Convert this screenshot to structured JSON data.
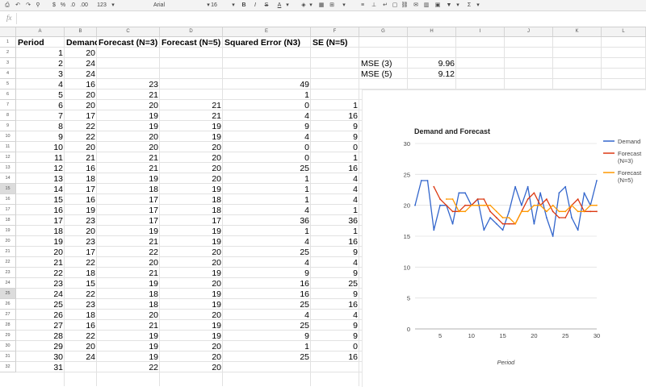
{
  "toolbar": {
    "font": "Arial",
    "font_size": "16",
    "currency": "$",
    "percent": "%",
    "decimals_less": ".0",
    "decimals_more": ".00",
    "number_format": "123",
    "bold": "B",
    "italic": "I",
    "strike": "S",
    "text_color": "A",
    "sum": "Σ"
  },
  "formula_bar": {
    "fx": "fx",
    "value": ""
  },
  "columns": [
    "A",
    "B",
    "C",
    "D",
    "E",
    "F",
    "G",
    "H",
    "I",
    "J",
    "K",
    "L"
  ],
  "rows": [
    "1",
    "2",
    "3",
    "4",
    "5",
    "6",
    "7",
    "8",
    "9",
    "10",
    "11",
    "12",
    "13",
    "14",
    "15",
    "16",
    "17",
    "18",
    "19",
    "20",
    "21",
    "22",
    "23",
    "24",
    "25",
    "26",
    "27",
    "28",
    "29",
    "30",
    "31",
    "32"
  ],
  "sheet": {
    "headers": [
      "Period",
      "Demand",
      "Forecast (N=3)",
      "Forecast (N=5)",
      "Squared Error (N3)",
      "SE (N=5)"
    ],
    "data": [
      [
        "1",
        "20",
        "",
        "",
        "",
        ""
      ],
      [
        "2",
        "24",
        "",
        "",
        "",
        ""
      ],
      [
        "3",
        "24",
        "",
        "",
        "",
        ""
      ],
      [
        "4",
        "16",
        "23",
        "",
        "49",
        ""
      ],
      [
        "5",
        "20",
        "21",
        "",
        "1",
        ""
      ],
      [
        "6",
        "20",
        "20",
        "21",
        "0",
        "1"
      ],
      [
        "7",
        "17",
        "19",
        "21",
        "4",
        "16"
      ],
      [
        "8",
        "22",
        "19",
        "19",
        "9",
        "9"
      ],
      [
        "9",
        "22",
        "20",
        "19",
        "4",
        "9"
      ],
      [
        "10",
        "20",
        "20",
        "20",
        "0",
        "0"
      ],
      [
        "11",
        "21",
        "21",
        "20",
        "0",
        "1"
      ],
      [
        "12",
        "16",
        "21",
        "20",
        "25",
        "16"
      ],
      [
        "13",
        "18",
        "19",
        "20",
        "1",
        "4"
      ],
      [
        "14",
        "17",
        "18",
        "19",
        "1",
        "4"
      ],
      [
        "15",
        "16",
        "17",
        "18",
        "1",
        "4"
      ],
      [
        "16",
        "19",
        "17",
        "18",
        "4",
        "1"
      ],
      [
        "17",
        "23",
        "17",
        "17",
        "36",
        "36"
      ],
      [
        "18",
        "20",
        "19",
        "19",
        "1",
        "1"
      ],
      [
        "19",
        "23",
        "21",
        "19",
        "4",
        "16"
      ],
      [
        "20",
        "17",
        "22",
        "20",
        "25",
        "9"
      ],
      [
        "21",
        "22",
        "20",
        "20",
        "4",
        "4"
      ],
      [
        "22",
        "18",
        "21",
        "19",
        "9",
        "9"
      ],
      [
        "23",
        "15",
        "19",
        "20",
        "16",
        "25"
      ],
      [
        "24",
        "22",
        "18",
        "19",
        "16",
        "9"
      ],
      [
        "25",
        "23",
        "18",
        "19",
        "25",
        "16"
      ],
      [
        "26",
        "18",
        "20",
        "20",
        "4",
        "4"
      ],
      [
        "27",
        "16",
        "21",
        "19",
        "25",
        "9"
      ],
      [
        "28",
        "22",
        "19",
        "19",
        "9",
        "9"
      ],
      [
        "29",
        "20",
        "19",
        "20",
        "1",
        "0"
      ],
      [
        "30",
        "24",
        "19",
        "20",
        "25",
        "16"
      ],
      [
        "31",
        "",
        "22",
        "20",
        "",
        ""
      ]
    ],
    "mse": [
      {
        "label": "MSE (3)",
        "value": "9.96"
      },
      {
        "label": "MSE (5)",
        "value": "9.12"
      }
    ]
  },
  "chart_data": {
    "type": "line",
    "title": "Demand and Forecast",
    "xlabel": "Period",
    "ylabel": "",
    "ylim": [
      0,
      30
    ],
    "xlim": [
      1,
      30
    ],
    "x_ticks": [
      5,
      10,
      15,
      20,
      25,
      30
    ],
    "y_ticks": [
      0,
      5,
      10,
      15,
      20,
      25,
      30
    ],
    "legend_position": "right",
    "series": [
      {
        "name": "Demand",
        "legend_lines": [
          "Demand"
        ],
        "color": "#3366cc",
        "x": [
          1,
          2,
          3,
          4,
          5,
          6,
          7,
          8,
          9,
          10,
          11,
          12,
          13,
          14,
          15,
          16,
          17,
          18,
          19,
          20,
          21,
          22,
          23,
          24,
          25,
          26,
          27,
          28,
          29,
          30
        ],
        "values": [
          20,
          24,
          24,
          16,
          20,
          20,
          17,
          22,
          22,
          20,
          21,
          16,
          18,
          17,
          16,
          19,
          23,
          20,
          23,
          17,
          22,
          18,
          15,
          22,
          23,
          18,
          16,
          22,
          20,
          24
        ]
      },
      {
        "name": "Forecast (N=3)",
        "legend_lines": [
          "Forecast",
          "(N=3)"
        ],
        "color": "#dc3912",
        "x": [
          4,
          5,
          6,
          7,
          8,
          9,
          10,
          11,
          12,
          13,
          14,
          15,
          16,
          17,
          18,
          19,
          20,
          21,
          22,
          23,
          24,
          25,
          26,
          27,
          28,
          29,
          30
        ],
        "values": [
          23,
          21,
          20,
          19,
          19,
          20,
          20,
          21,
          21,
          19,
          18,
          17,
          17,
          17,
          19,
          21,
          22,
          20,
          21,
          19,
          18,
          18,
          20,
          21,
          19,
          19,
          19
        ]
      },
      {
        "name": "Forecast (N=5)",
        "legend_lines": [
          "Forecast",
          "(N=5)"
        ],
        "color": "#ff9900",
        "x": [
          6,
          7,
          8,
          9,
          10,
          11,
          12,
          13,
          14,
          15,
          16,
          17,
          18,
          19,
          20,
          21,
          22,
          23,
          24,
          25,
          26,
          27,
          28,
          29,
          30
        ],
        "values": [
          21,
          21,
          19,
          19,
          20,
          20,
          20,
          20,
          19,
          18,
          18,
          17,
          19,
          19,
          20,
          20,
          19,
          20,
          19,
          19,
          20,
          19,
          19,
          20,
          20
        ]
      }
    ]
  }
}
